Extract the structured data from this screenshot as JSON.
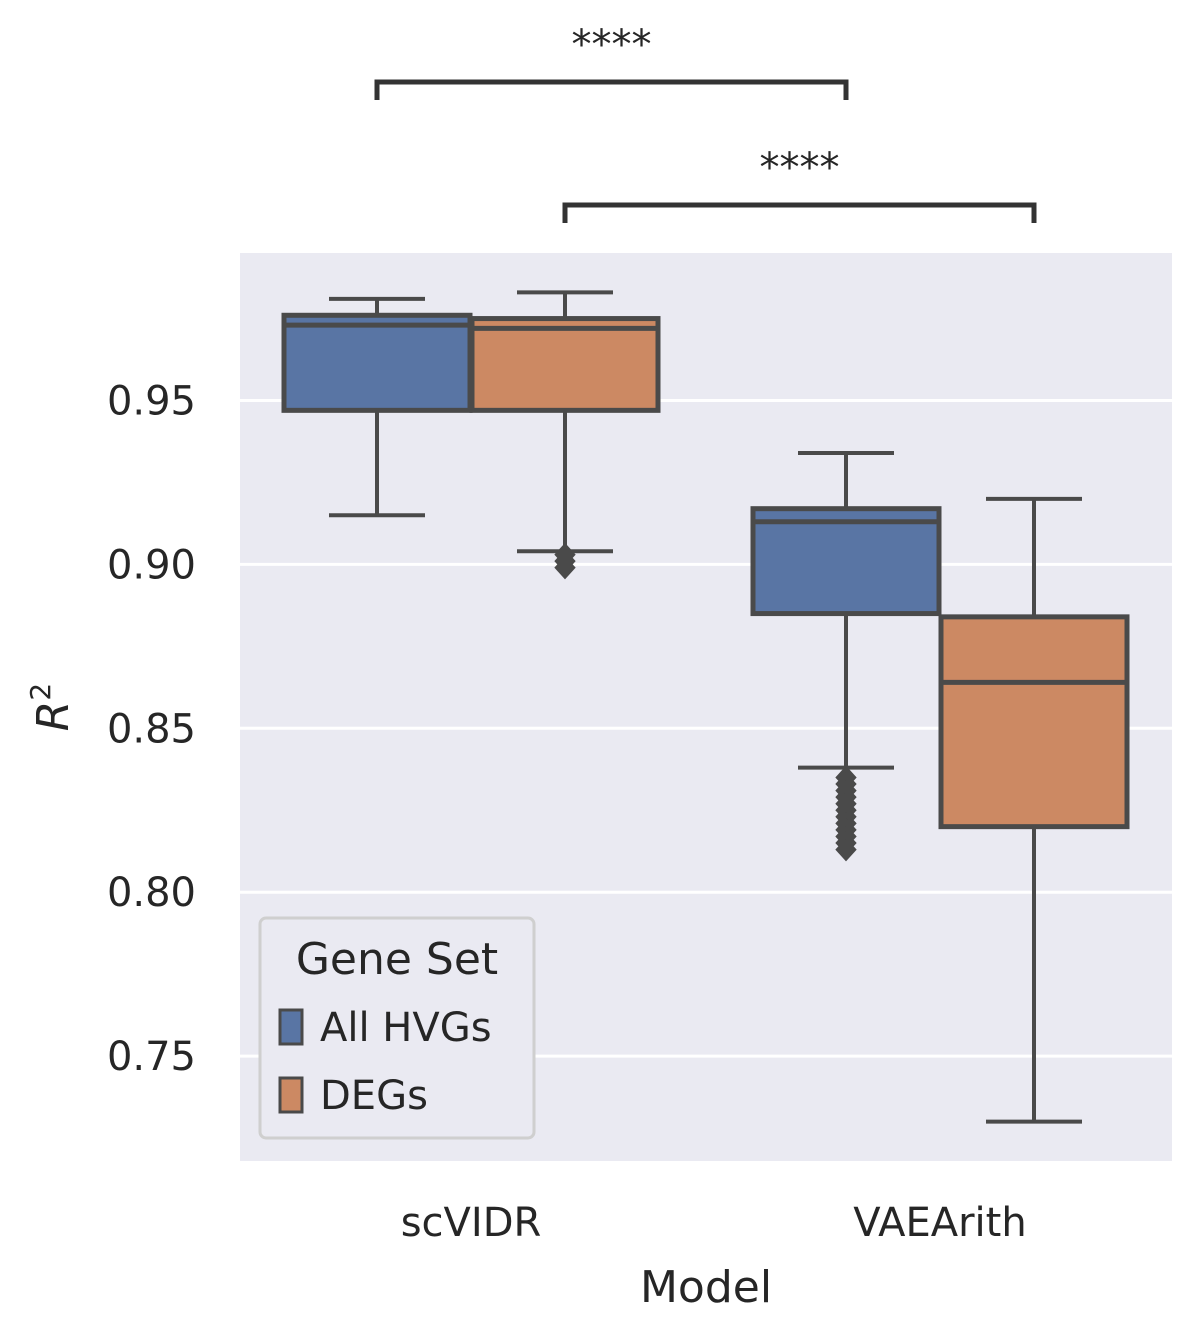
{
  "chart_data": {
    "type": "box",
    "xlabel": "Model",
    "ylabel_base": "R",
    "ylabel_sup": "2",
    "ylim": [
      0.718,
      0.995
    ],
    "yticks": [
      0.75,
      0.8,
      0.85,
      0.9,
      0.95
    ],
    "ytick_labels": [
      "0.75",
      "0.80",
      "0.85",
      "0.90",
      "0.95"
    ],
    "grid": true,
    "categories": [
      "scVIDR",
      "VAEArith"
    ],
    "legend": {
      "title": "Gene Set",
      "placement": "lower-left",
      "entries": [
        "All HVGs",
        "DEGs"
      ]
    },
    "series": [
      {
        "name": "All HVGs",
        "color": "#5975a4",
        "boxes": [
          {
            "category": "scVIDR",
            "whisker_low": 0.915,
            "q1": 0.947,
            "median": 0.973,
            "q3": 0.976,
            "whisker_high": 0.981,
            "outliers": []
          },
          {
            "category": "VAEArith",
            "whisker_low": 0.838,
            "q1": 0.885,
            "median": 0.913,
            "q3": 0.917,
            "whisker_high": 0.934,
            "outliers": [
              0.835,
              0.833,
              0.831,
              0.829,
              0.827,
              0.825,
              0.823,
              0.821,
              0.819,
              0.817,
              0.815,
              0.813
            ]
          }
        ]
      },
      {
        "name": "DEGs",
        "color": "#cc8963",
        "boxes": [
          {
            "category": "scVIDR",
            "whisker_low": 0.904,
            "q1": 0.947,
            "median": 0.972,
            "q3": 0.975,
            "whisker_high": 0.983,
            "outliers": [
              0.903,
              0.901,
              0.899
            ]
          },
          {
            "category": "VAEArith",
            "whisker_low": 0.73,
            "q1": 0.82,
            "median": 0.864,
            "q3": 0.884,
            "whisker_high": 0.92,
            "outliers": []
          }
        ]
      }
    ],
    "annotations": [
      {
        "label": "****",
        "from": {
          "category": "scVIDR",
          "series": "All HVGs"
        },
        "to": {
          "category": "VAEArith",
          "series": "All HVGs"
        }
      },
      {
        "label": "****",
        "from": {
          "category": "scVIDR",
          "series": "DEGs"
        },
        "to": {
          "category": "VAEArith",
          "series": "DEGs"
        }
      }
    ],
    "colors": {
      "plot_background": "#eaeaf2",
      "grid": "#ffffff",
      "edge": "#4a4a4a",
      "bracket": "#333333"
    }
  }
}
